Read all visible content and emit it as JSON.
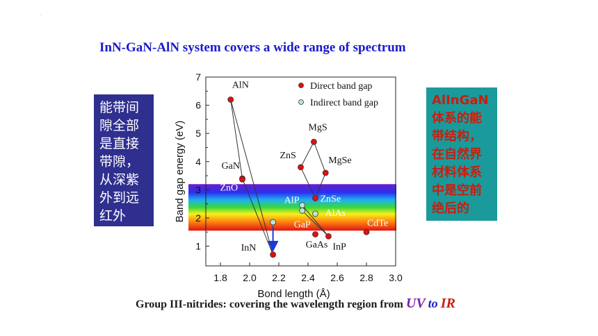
{
  "corner_mark": ".",
  "title": "InN-GaN-AlN system covers a wide range of spectrum",
  "left_box": {
    "lines": [
      "能带间",
      "隙全部",
      "是直接",
      "带隙，",
      "从深紫",
      "外到远",
      "红外"
    ]
  },
  "right_box": {
    "lines": [
      "AlInGaN",
      "体系的能",
      "带结构，",
      "在自然界",
      "材料体系",
      "中是空前",
      "绝后的"
    ]
  },
  "caption": {
    "prefix": "Group III-nitrides: covering the wavelength region from ",
    "uv": "UV",
    "to": "to",
    "ir": "IR"
  },
  "colors": {
    "direct": "#e01010",
    "indirect": "#b8e6d6",
    "arrow": "#1a3ad8",
    "title": "#1a1acc"
  },
  "chart_data": {
    "type": "scatter",
    "xlabel": "Bond length (Å)",
    "ylabel": "Band gap energy (eV)",
    "xlim": [
      1.7,
      3.0
    ],
    "ylim": [
      0.3,
      7.0
    ],
    "xticks": [
      1.8,
      2.0,
      2.2,
      2.4,
      2.6,
      2.8,
      3.0
    ],
    "yticks": [
      1,
      2,
      3,
      4,
      5,
      6,
      7
    ],
    "legend": {
      "position": "top-right",
      "direct_label": "Direct band gap",
      "indirect_label": "Indirect band gap"
    },
    "spectrum_band": {
      "y_range": [
        1.55,
        3.2
      ]
    },
    "points": [
      {
        "label": "AlN",
        "x": 1.87,
        "y": 6.2,
        "gap": "direct"
      },
      {
        "label": "GaN",
        "x": 1.95,
        "y": 3.4,
        "gap": "direct"
      },
      {
        "label": "ZnO",
        "x": 1.95,
        "y": 3.37,
        "gap": "direct"
      },
      {
        "label": "InN",
        "x": 2.16,
        "y": 0.7,
        "gap": "direct"
      },
      {
        "label": "MgS",
        "x": 2.44,
        "y": 4.7,
        "gap": "direct"
      },
      {
        "label": "ZnS",
        "x": 2.35,
        "y": 3.8,
        "gap": "direct"
      },
      {
        "label": "MgSe",
        "x": 2.52,
        "y": 3.6,
        "gap": "direct"
      },
      {
        "label": "ZnSe",
        "x": 2.45,
        "y": 2.7,
        "gap": "direct"
      },
      {
        "label": "AlP",
        "x": 2.36,
        "y": 2.45,
        "gap": "indirect"
      },
      {
        "label": "GaP",
        "x": 2.36,
        "y": 2.26,
        "gap": "indirect"
      },
      {
        "label": "AlAs",
        "x": 2.45,
        "y": 2.15,
        "gap": "indirect"
      },
      {
        "label": "GaAs",
        "x": 2.45,
        "y": 1.42,
        "gap": "direct"
      },
      {
        "label": "InP",
        "x": 2.54,
        "y": 1.35,
        "gap": "direct"
      },
      {
        "label": "CdTe",
        "x": 2.8,
        "y": 1.5,
        "gap": "direct"
      },
      {
        "label": "",
        "x": 2.16,
        "y": 1.85,
        "gap": "indirect"
      }
    ],
    "curves": [
      [
        "AlN",
        "InN"
      ],
      [
        "AlN",
        "GaN"
      ],
      [
        "GaN",
        "InN"
      ],
      [
        "MgS",
        "ZnS"
      ],
      [
        "ZnS",
        "ZnSe"
      ],
      [
        "MgS",
        "MgSe"
      ],
      [
        "MgSe",
        "ZnSe"
      ],
      [
        "AlP",
        "GaP"
      ],
      [
        "AlP",
        "InP"
      ],
      [
        "GaP",
        "InP"
      ]
    ]
  }
}
